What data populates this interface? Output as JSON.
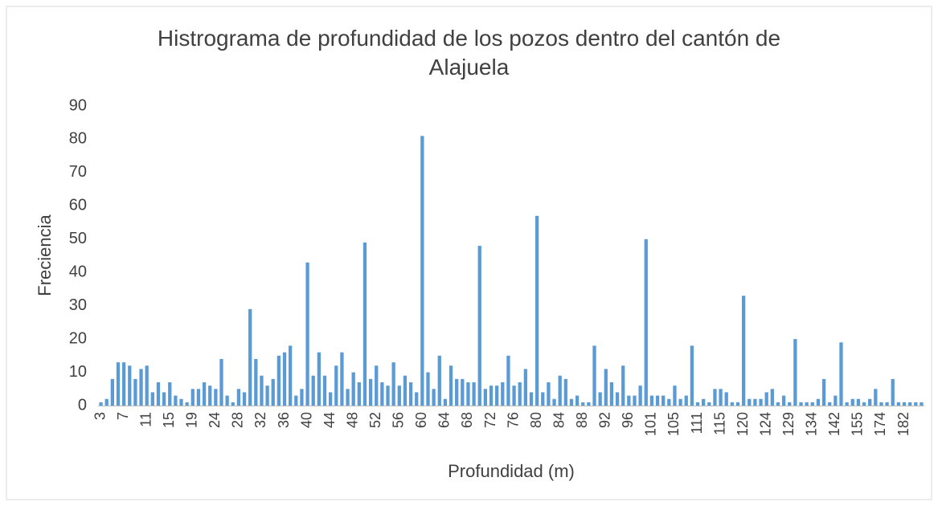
{
  "chart_data": {
    "type": "bar",
    "title": "Histrograma de profundidad de los pozos dentro del cantón de Alajuela",
    "x_label": "Profundidad (m)",
    "y_label": "Freciencia",
    "color": "#5b9bd5",
    "grid": false,
    "ylim": [
      0,
      90
    ],
    "yticks": [
      0,
      10,
      20,
      30,
      40,
      50,
      60,
      70,
      80,
      90
    ],
    "categories": [
      "3",
      null,
      null,
      null,
      "7",
      null,
      null,
      null,
      "11",
      null,
      null,
      null,
      "15",
      null,
      null,
      null,
      "19",
      null,
      null,
      null,
      "24",
      null,
      null,
      null,
      "28",
      null,
      null,
      null,
      "32",
      null,
      null,
      null,
      "36",
      null,
      null,
      null,
      "40",
      null,
      null,
      null,
      "44",
      null,
      null,
      null,
      "48",
      null,
      null,
      null,
      "52",
      null,
      null,
      null,
      "56",
      null,
      null,
      null,
      "60",
      null,
      null,
      null,
      "64",
      null,
      null,
      null,
      "68",
      null,
      null,
      null,
      "72",
      null,
      null,
      null,
      "76",
      null,
      null,
      null,
      "80",
      null,
      null,
      null,
      "84",
      null,
      null,
      null,
      "88",
      null,
      null,
      null,
      "92",
      null,
      null,
      null,
      "96",
      null,
      null,
      null,
      "101",
      null,
      null,
      null,
      "105",
      null,
      null,
      null,
      "111",
      null,
      null,
      null,
      "115",
      null,
      null,
      null,
      "120",
      null,
      null,
      null,
      "124",
      null,
      null,
      null,
      "129",
      null,
      null,
      null,
      "134",
      null,
      null,
      null,
      "142",
      null,
      null,
      null,
      "155",
      null,
      null,
      null,
      "174",
      null,
      null,
      null,
      "182",
      null,
      null,
      null
    ],
    "values": [
      1,
      2,
      8,
      13,
      13,
      12,
      8,
      11,
      12,
      4,
      7,
      4,
      7,
      3,
      2,
      1,
      5,
      5,
      7,
      6,
      5,
      14,
      3,
      1,
      5,
      4,
      29,
      14,
      9,
      6,
      8,
      15,
      16,
      18,
      3,
      5,
      43,
      9,
      16,
      9,
      4,
      12,
      16,
      5,
      10,
      7,
      49,
      8,
      12,
      7,
      6,
      13,
      6,
      9,
      7,
      4,
      81,
      10,
      5,
      15,
      2,
      12,
      8,
      8,
      7,
      7,
      48,
      5,
      6,
      6,
      7,
      15,
      6,
      7,
      11,
      4,
      57,
      4,
      7,
      2,
      9,
      8,
      2,
      3,
      1,
      1,
      18,
      4,
      11,
      7,
      4,
      12,
      3,
      3,
      6,
      50,
      3,
      3,
      3,
      2,
      6,
      2,
      3,
      18,
      1,
      2,
      1,
      5,
      5,
      4,
      1,
      1,
      33,
      2,
      2,
      2,
      4,
      5,
      1,
      3,
      1,
      20,
      1,
      1,
      1,
      2,
      8,
      1,
      3,
      19,
      1,
      2,
      2,
      1,
      2,
      5,
      1,
      1,
      8,
      1,
      1,
      1,
      1,
      1
    ]
  }
}
